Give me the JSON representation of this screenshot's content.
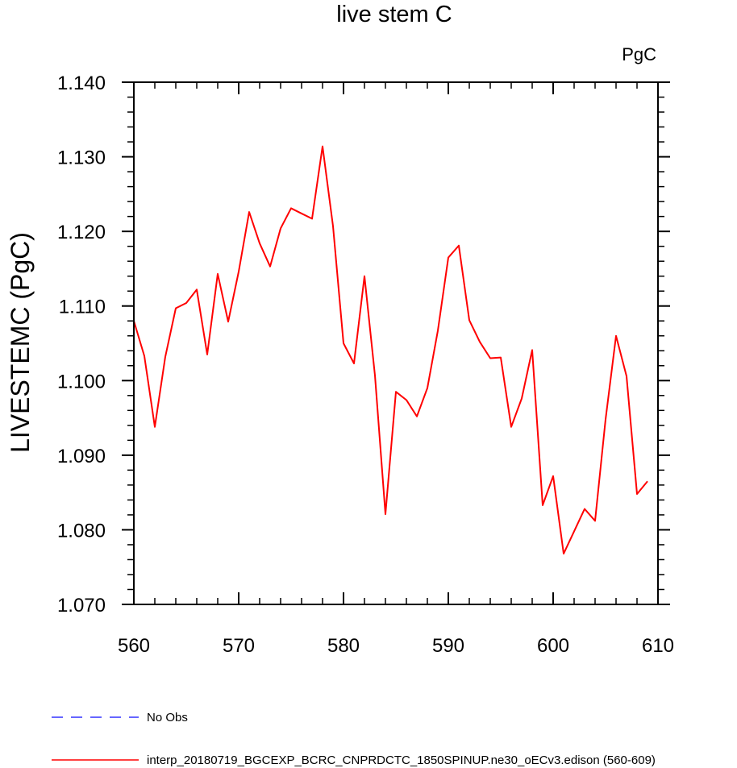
{
  "chart_data": {
    "type": "line",
    "title": "live stem C",
    "units_label": "PgC",
    "ylabel": "LIVESTEMC  (PgC)",
    "xlabel": "",
    "xlim": [
      560,
      610
    ],
    "ylim": [
      1.07,
      1.14
    ],
    "x_ticks": [
      560,
      570,
      580,
      590,
      600,
      610
    ],
    "x_tick_labels": [
      "560",
      "570",
      "580",
      "590",
      "600",
      "610"
    ],
    "y_ticks": [
      1.07,
      1.08,
      1.09,
      1.1,
      1.11,
      1.12,
      1.13,
      1.14
    ],
    "y_tick_labels": [
      "1.070",
      "1.080",
      "1.090",
      "1.100",
      "1.110",
      "1.120",
      "1.130",
      "1.140"
    ],
    "x_minor_step": 2,
    "y_minor_step": 0.002,
    "series": [
      {
        "name": "interp_20180719_BGCEXP_BCRC_CNPRDCTC_1850SPINUP.ne30_oECv3.edison (560-609)",
        "color": "#ff0000",
        "dash": "solid",
        "x": [
          560,
          561,
          562,
          563,
          564,
          565,
          566,
          567,
          568,
          569,
          570,
          571,
          572,
          573,
          574,
          575,
          576,
          577,
          578,
          579,
          580,
          581,
          582,
          583,
          584,
          585,
          586,
          587,
          588,
          589,
          590,
          591,
          592,
          593,
          594,
          595,
          596,
          597,
          598,
          599,
          600,
          601,
          602,
          603,
          604,
          605,
          606,
          607,
          608,
          609
        ],
        "values": [
          1.108,
          1.1033,
          1.0938,
          1.1032,
          1.1097,
          1.1104,
          1.1122,
          1.1035,
          1.1143,
          1.1079,
          1.1146,
          1.1226,
          1.1184,
          1.1153,
          1.1204,
          1.1231,
          1.1224,
          1.1217,
          1.1314,
          1.1207,
          1.105,
          1.1023,
          1.114,
          1.1007,
          1.0821,
          1.0985,
          1.0974,
          1.0952,
          1.099,
          1.1067,
          1.1165,
          1.1181,
          1.1081,
          1.1052,
          1.103,
          1.1031,
          1.0938,
          1.0976,
          1.1041,
          1.0833,
          1.0872,
          1.0768,
          1.0798,
          1.0828,
          1.0812,
          1.0948,
          1.106,
          1.1006,
          1.0848,
          1.0865
        ]
      }
    ],
    "legend": [
      {
        "label": "No Obs",
        "color": "#3333ff",
        "dash": "dashed"
      },
      {
        "label": "interp_20180719_BGCEXP_BCRC_CNPRDCTC_1850SPINUP.ne30_oECv3.edison (560-609)",
        "color": "#ff0000",
        "dash": "solid"
      }
    ],
    "legend_position": "bottom-left"
  }
}
